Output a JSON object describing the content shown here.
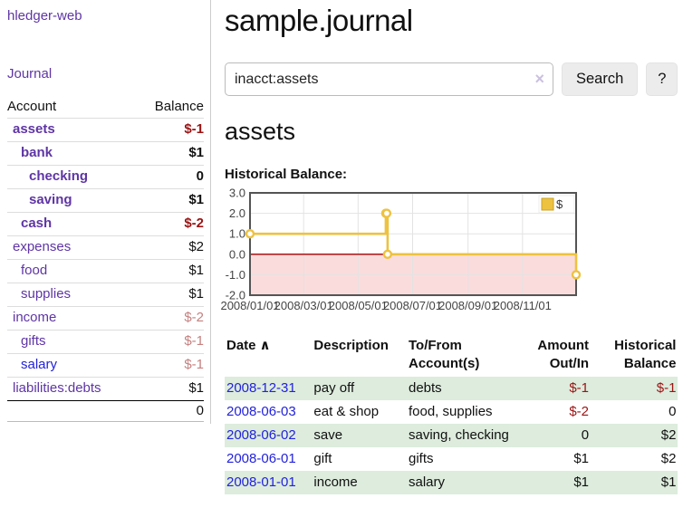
{
  "sidebar": {
    "app_title": "hledger-web",
    "journal_link": "Journal",
    "accounts_table": {
      "headers": {
        "account": "Account",
        "balance": "Balance"
      },
      "rows": [
        {
          "name": "assets",
          "balance": "$-1",
          "indent": 0,
          "bold": true,
          "muted": false,
          "blue_link": false
        },
        {
          "name": "bank",
          "balance": "$1",
          "indent": 1,
          "bold": true,
          "muted": false,
          "blue_link": false
        },
        {
          "name": "checking",
          "balance": "0",
          "indent": 2,
          "bold": true,
          "muted": false,
          "blue_link": false
        },
        {
          "name": "saving",
          "balance": "$1",
          "indent": 2,
          "bold": true,
          "muted": false,
          "blue_link": false
        },
        {
          "name": "cash",
          "balance": "$-2",
          "indent": 1,
          "bold": true,
          "muted": false,
          "blue_link": false
        },
        {
          "name": "expenses",
          "balance": "$2",
          "indent": 0,
          "bold": false,
          "muted": false,
          "blue_link": false
        },
        {
          "name": "food",
          "balance": "$1",
          "indent": 1,
          "bold": false,
          "muted": false,
          "blue_link": false
        },
        {
          "name": "supplies",
          "balance": "$1",
          "indent": 1,
          "bold": false,
          "muted": false,
          "blue_link": false
        },
        {
          "name": "income",
          "balance": "$-2",
          "indent": 0,
          "bold": false,
          "muted": true,
          "blue_link": false
        },
        {
          "name": "gifts",
          "balance": "$-1",
          "indent": 1,
          "bold": false,
          "muted": true,
          "blue_link": false
        },
        {
          "name": "salary",
          "balance": "$-1",
          "indent": 1,
          "bold": false,
          "muted": true,
          "blue_link": true
        },
        {
          "name": "liabilities:debts",
          "balance": "$1",
          "indent": 0,
          "bold": false,
          "muted": false,
          "blue_link": false
        }
      ],
      "total": "0"
    }
  },
  "main": {
    "title": "sample.journal",
    "search": {
      "value": "inacct:assets",
      "clear_icon": "×",
      "search_button": "Search",
      "help_button": "?"
    },
    "account_heading": "assets",
    "chart_label": "Historical Balance:"
  },
  "chart_data": {
    "type": "line",
    "step": true,
    "series": [
      {
        "name": "$",
        "color": "#edc240",
        "x": [
          "2008/01/01",
          "2008/06/01",
          "2008/06/02",
          "2008/06/03",
          "2008/12/31"
        ],
        "y": [
          1,
          2,
          2,
          0,
          -1
        ]
      }
    ],
    "xlim": [
      "2008/01/01",
      "2008/12/31"
    ],
    "ylim": [
      -2,
      3
    ],
    "yticks": [
      3.0,
      2.0,
      1.0,
      0.0,
      -1.0,
      -2.0
    ],
    "ytick_labels": [
      "3.0",
      "2.0",
      "1.0",
      "0.0",
      "-1.0",
      "-2.0"
    ],
    "xticks": [
      "2008/01/01",
      "2008/03/01",
      "2008/05/01",
      "2008/07/01",
      "2008/09/01",
      "2008/11/01"
    ],
    "grid": true,
    "legend": {
      "label": "$",
      "position": "top-right"
    },
    "negative_fill": "#fbdcdc",
    "zero_line_color": "#a40000"
  },
  "register": {
    "headers": {
      "date": "Date",
      "description": "Description",
      "accounts": "To/From Account(s)",
      "amount": "Amount Out/In",
      "balance": "Historical Balance"
    },
    "sort_icon": "∧",
    "rows": [
      {
        "date": "2008-12-31",
        "description": "pay off",
        "accounts": "debts",
        "amount": "$-1",
        "balance": "$-1",
        "shaded": true
      },
      {
        "date": "2008-06-03",
        "description": "eat & shop",
        "accounts": "food, supplies",
        "amount": "$-2",
        "balance": "0",
        "shaded": false
      },
      {
        "date": "2008-06-02",
        "description": "save",
        "accounts": "saving, checking",
        "amount": "0",
        "balance": "$2",
        "shaded": true
      },
      {
        "date": "2008-06-01",
        "description": "gift",
        "accounts": "gifts",
        "amount": "$1",
        "balance": "$2",
        "shaded": false
      },
      {
        "date": "2008-01-01",
        "description": "income",
        "accounts": "salary",
        "amount": "$1",
        "balance": "$1",
        "shaded": true
      }
    ]
  },
  "colors": {
    "link_purple": "#5f35a5",
    "link_blue": "#2222dd",
    "negative_red": "#9b1313",
    "negative_muted_rose": "#c5807f",
    "row_stripe_green": "#ddecdd",
    "series_yellow": "#edc240",
    "negative_area_pink": "#fbdcdc",
    "zero_line_red": "#a40000"
  }
}
